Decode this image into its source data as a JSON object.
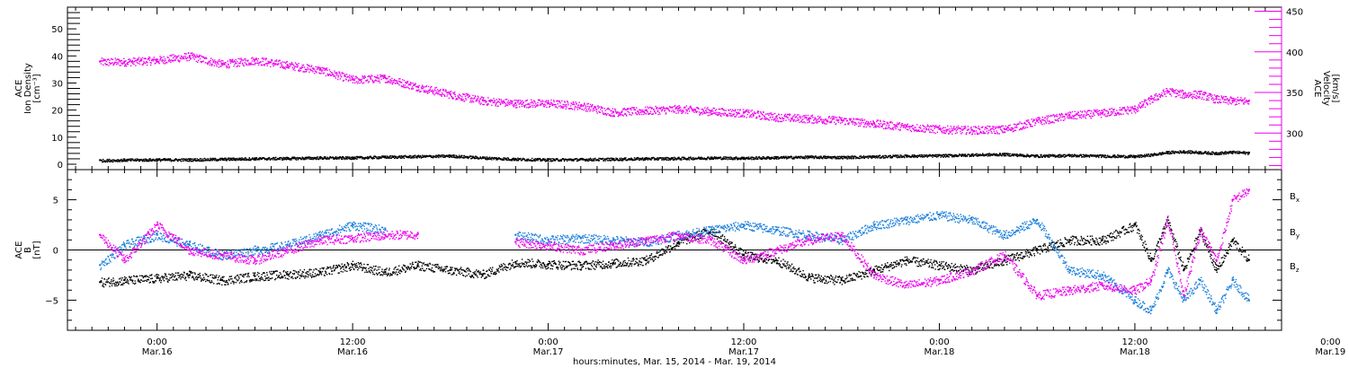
{
  "colors": {
    "black": "#000000",
    "magenta": "#ee00ee",
    "blue": "#1a7fdc"
  },
  "chart_data": [
    {
      "type": "scatter",
      "panel": "top",
      "xlabel": "hours:minutes, Mar. 15, 2014 - Mar. 19, 2014",
      "x_unit": "hours from 2014-03-16 00:00",
      "xlim": [
        -5.5,
        69
      ],
      "x_ticks": [
        {
          "hour": 0,
          "time": "0:00",
          "date": "Mar.16"
        },
        {
          "hour": 12,
          "time": "12:00",
          "date": "Mar.16"
        },
        {
          "hour": 24,
          "time": "0:00",
          "date": "Mar.17"
        },
        {
          "hour": 36,
          "time": "12:00",
          "date": "Mar.17"
        },
        {
          "hour": 48,
          "time": "0:00",
          "date": "Mar.18"
        },
        {
          "hour": 60,
          "time": "12:00",
          "date": "Mar.18"
        },
        {
          "hour": 72,
          "time": "0:00",
          "date": "Mar.19"
        }
      ],
      "left_axis": {
        "label_lines": [
          "ACE",
          "Ion Density",
          "[cm⁻³]"
        ],
        "ylim": [
          -2,
          58
        ],
        "ticks": [
          0,
          10,
          20,
          30,
          40,
          50
        ]
      },
      "right_axis": {
        "label_lines": [
          "ACE",
          "Velocity",
          "[km/s]"
        ],
        "ylim": [
          255,
          455
        ],
        "ticks": [
          300,
          350,
          400,
          450
        ]
      },
      "series": [
        {
          "name": "Ion Density",
          "axis": "left",
          "color": "#000000",
          "x": [
            -3.5,
            -2,
            0,
            2,
            4,
            6,
            8,
            10,
            12,
            14,
            16,
            18,
            20,
            22,
            24,
            26,
            28,
            30,
            32,
            34,
            36,
            38,
            40,
            42,
            44,
            46,
            48,
            50,
            52,
            54,
            56,
            58,
            60,
            61,
            62,
            63,
            64,
            65,
            66,
            67
          ],
          "y": [
            1.5,
            1.7,
            1.8,
            1.8,
            2,
            2.2,
            2.3,
            2.5,
            2.5,
            2.8,
            3,
            3.2,
            2.5,
            2,
            1.8,
            1.9,
            2,
            2.2,
            2.3,
            2.5,
            2.4,
            2.6,
            2.8,
            2.7,
            2.9,
            3.2,
            3.3,
            3.6,
            3.8,
            3.2,
            3.4,
            3.2,
            3.0,
            3.6,
            4.5,
            4.8,
            4.5,
            4.2,
            4.6,
            4.3
          ]
        },
        {
          "name": "Velocity",
          "axis": "right",
          "color": "#ee00ee",
          "x": [
            -3.5,
            -2,
            0,
            2,
            4,
            6,
            8,
            10,
            12,
            14,
            16,
            18,
            20,
            22,
            24,
            26,
            28,
            30,
            32,
            34,
            36,
            38,
            40,
            42,
            44,
            46,
            48,
            50,
            52,
            54,
            56,
            58,
            60,
            61,
            62,
            63,
            64,
            65,
            66,
            67
          ],
          "y": [
            388,
            388,
            390,
            395,
            385,
            390,
            384,
            378,
            366,
            368,
            357,
            348,
            340,
            337,
            337,
            334,
            326,
            328,
            330,
            327,
            325,
            320,
            318,
            316,
            312,
            308,
            305,
            304,
            305,
            315,
            322,
            325,
            330,
            342,
            352,
            348,
            348,
            342,
            340,
            340
          ]
        }
      ]
    },
    {
      "type": "scatter",
      "panel": "bottom",
      "xlabel": "hours:minutes, Mar. 15, 2014 - Mar. 19, 2014",
      "x_unit": "hours from 2014-03-16 00:00",
      "xlim": [
        -5.5,
        69
      ],
      "y_axis": {
        "label_lines": [
          "ACE",
          "B",
          "[nT]"
        ],
        "ylim": [
          -8,
          8
        ],
        "ticks": [
          -5,
          0,
          5
        ]
      },
      "series": [
        {
          "name": "Bx",
          "label": "B",
          "sub": "x",
          "color": "#000000",
          "x": [
            -3.5,
            -2,
            0,
            2,
            4,
            6,
            8,
            10,
            12,
            14,
            16,
            18,
            20,
            22,
            24,
            26,
            28,
            30,
            32,
            34,
            36,
            38,
            40,
            42,
            44,
            46,
            48,
            50,
            52,
            54,
            56,
            58,
            60,
            61,
            62,
            63,
            64,
            65,
            66,
            67
          ],
          "y": [
            -3.2,
            -3,
            -2.8,
            -2.5,
            -3,
            -2.6,
            -2.4,
            -2.2,
            -1.5,
            -2.2,
            -1.5,
            -2.0,
            -2.4,
            -1.2,
            -1.4,
            -1.5,
            -1.3,
            -1.0,
            0.8,
            2.0,
            -0.5,
            -1.0,
            -2.7,
            -3.0,
            -2.0,
            -1.0,
            -1.5,
            -2.0,
            -1.0,
            0,
            1.0,
            1.0,
            2.5,
            -1.0,
            3.0,
            -2.0,
            2.0,
            -2.0,
            1.0,
            -1.0
          ]
        },
        {
          "name": "By",
          "label": "B",
          "sub": "y",
          "color": "#1a7fdc",
          "x": [
            -3.5,
            -2,
            0,
            2,
            4,
            6,
            8,
            10,
            12,
            14,
            16,
            18,
            20,
            22,
            24,
            26,
            28,
            30,
            32,
            34,
            36,
            38,
            40,
            42,
            44,
            46,
            48,
            50,
            52,
            54,
            56,
            58,
            60,
            61,
            62,
            63,
            64,
            65,
            66,
            67
          ],
          "y": [
            -1.5,
            0.5,
            1.5,
            0.5,
            -0.5,
            0,
            0.5,
            1.5,
            2.5,
            2.0,
            null,
            null,
            null,
            1.5,
            1.0,
            1.2,
            1.0,
            0.8,
            1.5,
            2.0,
            2.5,
            2.0,
            1.5,
            1.0,
            2.5,
            3.0,
            3.5,
            3.0,
            1.5,
            3.0,
            -2.0,
            -2.5,
            -5.0,
            -6.0,
            -2.0,
            -5.0,
            -3.0,
            -6.0,
            -3.0,
            -5.0
          ]
        },
        {
          "name": "Bz",
          "label": "B",
          "sub": "z",
          "color": "#ee00ee",
          "x": [
            -3.5,
            -2,
            0,
            2,
            4,
            6,
            8,
            10,
            12,
            14,
            16,
            18,
            20,
            22,
            24,
            26,
            28,
            30,
            32,
            34,
            36,
            38,
            40,
            42,
            44,
            46,
            48,
            50,
            52,
            54,
            56,
            58,
            60,
            61,
            62,
            63,
            64,
            65,
            66,
            67
          ],
          "y": [
            1.5,
            -1,
            2.5,
            0,
            -0.5,
            -1,
            0,
            1.0,
            1.2,
            1.5,
            1.6,
            null,
            null,
            0.8,
            0.5,
            0,
            0.5,
            1.0,
            1.5,
            1.0,
            -1.0,
            0,
            1.0,
            1.5,
            -2.5,
            -3.5,
            -3.0,
            -2.0,
            -0.5,
            -4.5,
            -4.0,
            -3.5,
            -4.0,
            -3.0,
            3.0,
            -4.5,
            2.0,
            -1.0,
            5.0,
            6.0
          ]
        }
      ]
    }
  ]
}
